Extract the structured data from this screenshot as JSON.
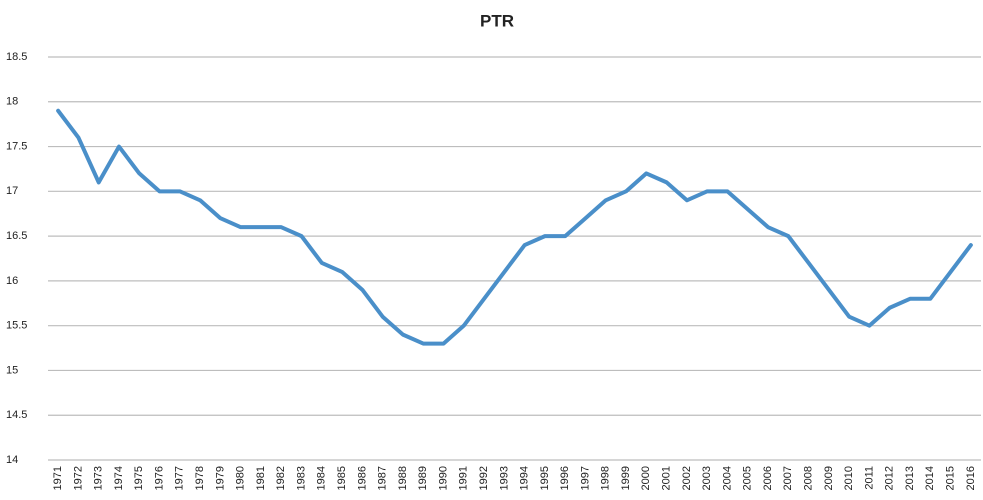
{
  "chart_data": {
    "type": "line",
    "title": "PTR",
    "categories": [
      "1971",
      "1972",
      "1973",
      "1974",
      "1975",
      "1976",
      "1977",
      "1978",
      "1979",
      "1980",
      "1981",
      "1982",
      "1983",
      "1984",
      "1985",
      "1986",
      "1987",
      "1988",
      "1989",
      "1990",
      "1991",
      "1992",
      "1993",
      "1994",
      "1995",
      "1996",
      "1997",
      "1998",
      "1999",
      "2000",
      "2001",
      "2002",
      "2003",
      "2004",
      "2005",
      "2006",
      "2007",
      "2008",
      "2009",
      "2010",
      "2011",
      "2012",
      "2013",
      "2014",
      "2015",
      "2016"
    ],
    "values": [
      17.9,
      17.6,
      17.1,
      17.5,
      17.2,
      17.0,
      17.0,
      16.9,
      16.7,
      16.6,
      16.6,
      16.6,
      16.5,
      16.2,
      16.1,
      15.9,
      15.6,
      15.4,
      15.3,
      15.3,
      15.5,
      15.8,
      16.1,
      16.4,
      16.5,
      16.5,
      16.7,
      16.9,
      17.0,
      17.2,
      17.1,
      16.9,
      17.0,
      17.0,
      16.8,
      16.6,
      16.5,
      16.2,
      15.9,
      15.6,
      15.5,
      15.7,
      15.8,
      15.8,
      16.1,
      16.4
    ],
    "color": "#4a8fc9",
    "ylim": [
      14,
      18.5
    ],
    "yticks": [
      14,
      14.5,
      15,
      15.5,
      16,
      16.5,
      17,
      17.5,
      18,
      18.5
    ],
    "grid": true
  }
}
